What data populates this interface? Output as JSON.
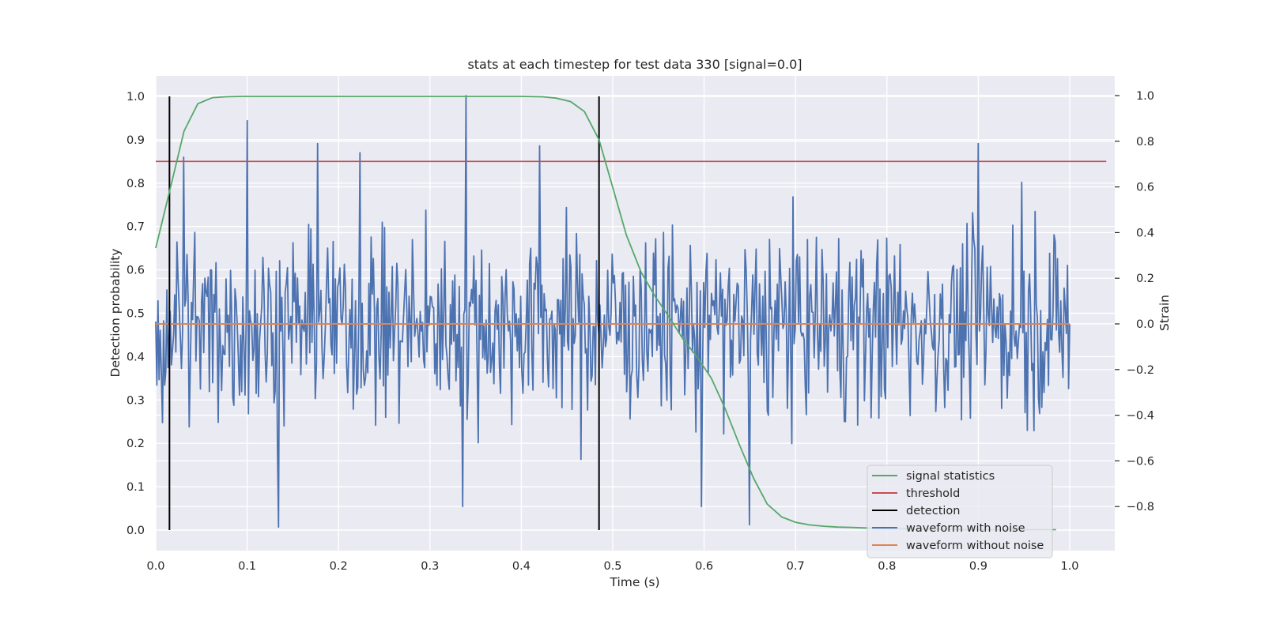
{
  "chart_data": {
    "type": "line",
    "title": "stats at each timestep for test data 330 [signal=0.0]",
    "xlabel": "Time (s)",
    "ylabel": "Detection probability",
    "ylabel_right": "Strain",
    "xlim": [
      0.0,
      1.05
    ],
    "ylim": [
      -0.05,
      1.05
    ],
    "ylim_right": [
      -0.985,
      1.09
    ],
    "x_ticks": [
      "0.0",
      "0.1",
      "0.2",
      "0.3",
      "0.4",
      "0.5",
      "0.6",
      "0.7",
      "0.8",
      "0.9",
      "1.0"
    ],
    "y_ticks": [
      "0.0",
      "0.1",
      "0.2",
      "0.3",
      "0.4",
      "0.5",
      "0.6",
      "0.7",
      "0.8",
      "0.9",
      "1.0"
    ],
    "y_ticks_right": [
      "−0.8",
      "−0.6",
      "−0.4",
      "−0.2",
      "0.0",
      "0.2",
      "0.4",
      "0.6",
      "0.8",
      "1.0"
    ],
    "grid": true,
    "legend_position": "lower-right",
    "colors": {
      "signal_statistics": "#55a868",
      "threshold": "#c44e52",
      "detection": "#000000",
      "waveform_with_noise": "#4c72b0",
      "waveform_without_noise": "#dd8452",
      "plot_background": "#eaeaf2",
      "grid": "#ffffff"
    },
    "legend": [
      {
        "key": "signal_statistics",
        "label": "signal statistics"
      },
      {
        "key": "threshold",
        "label": "threshold"
      },
      {
        "key": "detection",
        "label": "detection"
      },
      {
        "key": "waveform_with_noise",
        "label": "waveform with noise"
      },
      {
        "key": "waveform_without_noise",
        "label": "waveform without noise"
      }
    ],
    "series": {
      "signal_statistics": {
        "x": [
          0.0,
          0.015,
          0.031,
          0.046,
          0.062,
          0.077,
          0.093,
          0.108,
          0.2,
          0.3,
          0.4,
          0.423,
          0.438,
          0.454,
          0.469,
          0.485,
          0.5,
          0.515,
          0.531,
          0.546,
          0.562,
          0.577,
          0.592,
          0.608,
          0.623,
          0.638,
          0.654,
          0.669,
          0.685,
          0.7,
          0.715,
          0.731,
          0.746,
          0.762,
          0.777,
          0.792,
          0.808,
          0.823,
          0.838,
          0.854,
          0.869,
          0.885,
          0.9,
          0.915,
          0.931,
          0.946,
          0.962,
          0.977,
          0.985
        ],
        "y": [
          0.65,
          0.78,
          0.92,
          0.983,
          0.997,
          0.999,
          1.0,
          1.0,
          1.0,
          1.0,
          1.0,
          0.999,
          0.996,
          0.988,
          0.965,
          0.9,
          0.79,
          0.68,
          0.595,
          0.54,
          0.49,
          0.44,
          0.4,
          0.35,
          0.28,
          0.2,
          0.12,
          0.06,
          0.03,
          0.018,
          0.012,
          0.009,
          0.007,
          0.006,
          0.005,
          0.004,
          0.003,
          0.003,
          0.002,
          0.002,
          0.002,
          0.001,
          0.001,
          0.001,
          0.001,
          0.001,
          0.001,
          0.001,
          0.001
        ]
      },
      "threshold": {
        "x": [
          0.0,
          1.04
        ],
        "y": [
          0.85,
          0.85
        ]
      },
      "detection": {
        "x": [
          0.015,
          0.485
        ],
        "y_min": 0.0,
        "y_max": 1.0
      },
      "waveform_without_noise": {
        "x": [
          0.0,
          1.0
        ],
        "y": [
          0.0,
          0.0
        ]
      },
      "waveform_with_noise": {
        "x_start": 0.0,
        "x_end": 1.0,
        "amplitude_std": 0.28,
        "peaks": [
          {
            "x": 0.03,
            "y": 0.73
          },
          {
            "x": 0.1,
            "y": 0.89
          },
          {
            "x": 0.134,
            "y": -0.89
          },
          {
            "x": 0.177,
            "y": 0.79
          },
          {
            "x": 0.224,
            "y": 0.75
          },
          {
            "x": 0.34,
            "y": 1.0
          },
          {
            "x": 0.336,
            "y": -0.8
          },
          {
            "x": 0.42,
            "y": 0.78
          },
          {
            "x": 0.597,
            "y": -0.8
          },
          {
            "x": 0.65,
            "y": -0.88
          },
          {
            "x": 0.9,
            "y": 0.79
          },
          {
            "x": 0.947,
            "y": 0.62
          }
        ],
        "samples": 820
      }
    }
  }
}
